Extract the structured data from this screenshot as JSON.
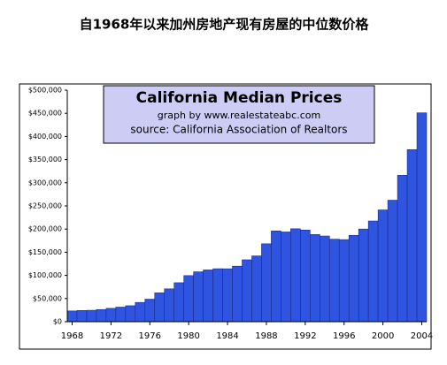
{
  "heading": "自1968年以来加州房地产现有房屋的中位数价格",
  "chart_data": {
    "type": "bar",
    "title": "California Median Prices",
    "subtitle": "graph by www.realestateabc.com",
    "source": "source:  California Association of Realtors",
    "x": [
      1968,
      1969,
      1970,
      1971,
      1972,
      1973,
      1974,
      1975,
      1976,
      1977,
      1978,
      1979,
      1980,
      1981,
      1982,
      1983,
      1984,
      1985,
      1986,
      1987,
      1988,
      1989,
      1990,
      1991,
      1992,
      1993,
      1994,
      1995,
      1996,
      1997,
      1998,
      1999,
      2000,
      2001,
      2002,
      2003,
      2004
    ],
    "values": [
      23210,
      24230,
      24640,
      26240,
      28810,
      31460,
      34490,
      41600,
      48640,
      62290,
      70890,
      84150,
      99550,
      107710,
      111800,
      114370,
      114260,
      119860,
      133640,
      142060,
      168200,
      196120,
      193770,
      200660,
      197900,
      188240,
      185010,
      178160,
      177270,
      186490,
      200100,
      217510,
      241350,
      262350,
      316130,
      371520,
      450990
    ],
    "color": "#2f55e0",
    "xlim": [
      1967.5,
      2004.5
    ],
    "xticks": [
      1968,
      1972,
      1976,
      1980,
      1984,
      1988,
      1992,
      1996,
      2000,
      2004
    ],
    "ylim": [
      0,
      500000
    ],
    "yticks": [
      {
        "value": 0,
        "label": "$0"
      },
      {
        "value": 50000,
        "label": "$50,000"
      },
      {
        "value": 100000,
        "label": "$100,000"
      },
      {
        "value": 150000,
        "label": "$150,000"
      },
      {
        "value": 200000,
        "label": "$200,000"
      },
      {
        "value": 250000,
        "label": "$250,000"
      },
      {
        "value": 300000,
        "label": "$300,000"
      },
      {
        "value": 350000,
        "label": "$350,000"
      },
      {
        "value": 400000,
        "label": "$400,000"
      },
      {
        "value": 450000,
        "label": "$450,000"
      },
      {
        "value": 500000,
        "label": "$500,000"
      }
    ],
    "grid": false
  }
}
